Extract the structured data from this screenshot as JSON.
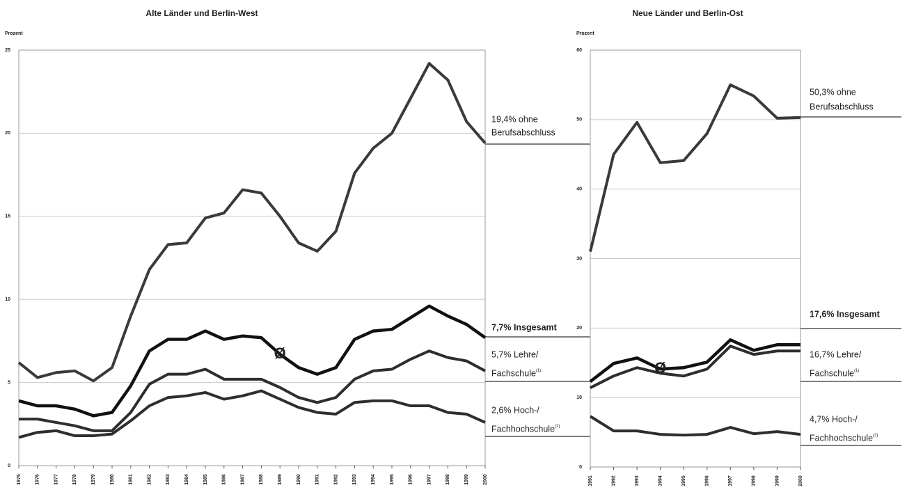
{
  "chart_data": [
    {
      "type": "line",
      "title": "Alte Länder und Berlin-West",
      "y_label": "Prozent",
      "x": [
        1975,
        1976,
        1977,
        1978,
        1979,
        1980,
        1981,
        1982,
        1983,
        1984,
        1985,
        1986,
        1987,
        1988,
        1989,
        1990,
        1991,
        1992,
        1993,
        1994,
        1995,
        1996,
        1997,
        1998,
        1999,
        2000
      ],
      "xlim": [
        1975,
        2000
      ],
      "ylim": [
        0,
        25
      ],
      "yticks": [
        0,
        5,
        10,
        15,
        20,
        25
      ],
      "grid": true,
      "annotation": "Ø",
      "annotation_x": 1989,
      "series": [
        {
          "label": [
            "19,4% ohne",
            "Berufsabschluss"
          ],
          "color": "#3a3a3a",
          "bold": false,
          "values": [
            6.2,
            5.3,
            5.6,
            5.7,
            5.1,
            5.9,
            9.0,
            11.8,
            13.3,
            13.4,
            14.9,
            15.2,
            16.6,
            16.4,
            15.0,
            13.4,
            12.9,
            14.1,
            17.6,
            19.1,
            20.0,
            22.1,
            24.2,
            23.2,
            20.7,
            19.4
          ]
        },
        {
          "label": [
            "7,7% Insgesamt"
          ],
          "color": "#111111",
          "bold": true,
          "values": [
            3.9,
            3.6,
            3.6,
            3.4,
            3.0,
            3.2,
            4.8,
            6.9,
            7.6,
            7.6,
            8.1,
            7.6,
            7.8,
            7.7,
            6.7,
            5.9,
            5.5,
            5.9,
            7.6,
            8.1,
            8.2,
            8.9,
            9.6,
            9.0,
            8.5,
            7.7
          ]
        },
        {
          "label": [
            "5,7% Lehre/",
            "Fachschule"
          ],
          "note": "(1)",
          "color": "#2e2e2e",
          "bold": false,
          "values": [
            2.8,
            2.8,
            2.6,
            2.4,
            2.1,
            2.1,
            3.2,
            4.9,
            5.5,
            5.5,
            5.8,
            5.2,
            5.2,
            5.2,
            4.7,
            4.1,
            3.8,
            4.1,
            5.2,
            5.7,
            5.8,
            6.4,
            6.9,
            6.5,
            6.3,
            5.7
          ]
        },
        {
          "label": [
            "2,6% Hoch-/",
            "Fachhochschule"
          ],
          "note": "(2)",
          "color": "#2e2e2e",
          "bold": false,
          "values": [
            1.7,
            2.0,
            2.1,
            1.8,
            1.8,
            1.9,
            2.7,
            3.6,
            4.1,
            4.2,
            4.4,
            4.0,
            4.2,
            4.5,
            4.0,
            3.5,
            3.2,
            3.1,
            3.8,
            3.9,
            3.9,
            3.6,
            3.6,
            3.2,
            3.1,
            2.6
          ]
        }
      ]
    },
    {
      "type": "line",
      "title": "Neue Länder und Berlin-Ost",
      "y_label": "Prozent",
      "x": [
        1991,
        1992,
        1993,
        1994,
        1995,
        1996,
        1997,
        1998,
        1999,
        2000
      ],
      "xlim": [
        1991,
        2000
      ],
      "ylim": [
        0,
        60
      ],
      "yticks": [
        0,
        10,
        20,
        30,
        40,
        50,
        60
      ],
      "grid": true,
      "annotation": "Ø",
      "annotation_x": 1994,
      "series": [
        {
          "label": [
            "50,3% ohne",
            "Berufsabschluss"
          ],
          "color": "#3a3a3a",
          "bold": false,
          "values": [
            31.0,
            45.0,
            49.6,
            43.8,
            44.1,
            48.0,
            55.0,
            53.4,
            50.2,
            50.3
          ]
        },
        {
          "label": [
            "17,6% Insgesamt"
          ],
          "color": "#111111",
          "bold": true,
          "values": [
            12.3,
            14.9,
            15.7,
            14.1,
            14.3,
            15.1,
            18.3,
            16.8,
            17.6,
            17.6
          ]
        },
        {
          "label": [
            "16,7% Lehre/",
            "Fachschule"
          ],
          "note": "(1)",
          "color": "#2e2e2e",
          "bold": false,
          "values": [
            11.4,
            13.1,
            14.3,
            13.5,
            13.1,
            14.1,
            17.4,
            16.2,
            16.7,
            16.7
          ]
        },
        {
          "label": [
            "4,7% Hoch-/",
            "Fachhochschule"
          ],
          "note": "(2)",
          "color": "#2e2e2e",
          "bold": false,
          "values": [
            7.3,
            5.2,
            5.2,
            4.7,
            4.6,
            4.7,
            5.7,
            4.8,
            5.1,
            4.7
          ]
        }
      ]
    }
  ]
}
